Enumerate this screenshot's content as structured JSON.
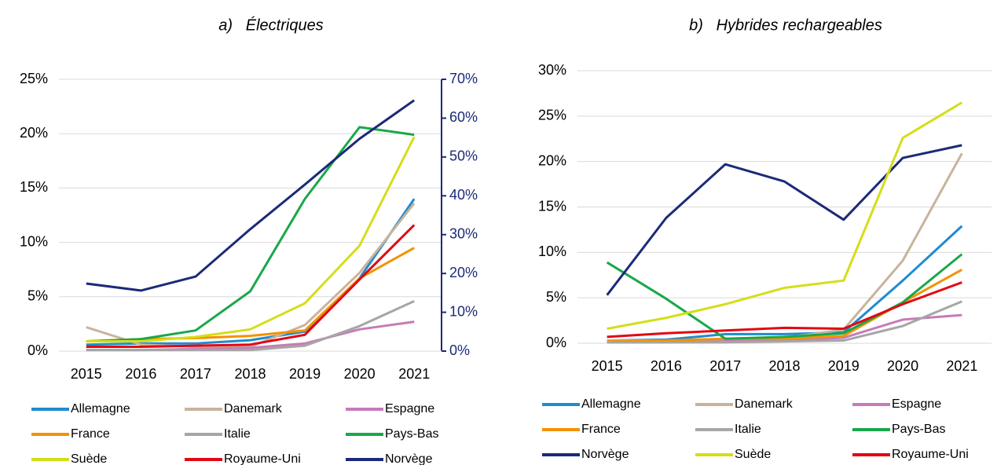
{
  "chart_data": [
    {
      "type": "line",
      "title": "a)   Électriques",
      "categories": [
        "2015",
        "2016",
        "2017",
        "2018",
        "2019",
        "2020",
        "2021"
      ],
      "ylim": [
        0,
        25
      ],
      "yticks": [
        {
          "value": 0,
          "label": "0%"
        },
        {
          "value": 5,
          "label": "5%"
        },
        {
          "value": 10,
          "label": "10%"
        },
        {
          "value": 15,
          "label": "15%"
        },
        {
          "value": 20,
          "label": "20%"
        },
        {
          "value": 25,
          "label": "25%"
        }
      ],
      "y2lim": [
        0,
        70
      ],
      "y2ticks": [
        {
          "value": 0,
          "label": "0%"
        },
        {
          "value": 10,
          "label": "10%"
        },
        {
          "value": 20,
          "label": "20%"
        },
        {
          "value": 30,
          "label": "30%"
        },
        {
          "value": 40,
          "label": "40%"
        },
        {
          "value": 50,
          "label": "50%"
        },
        {
          "value": 60,
          "label": "60%"
        },
        {
          "value": 70,
          "label": "70%"
        }
      ],
      "y2color": "#1b2a78",
      "grid": true,
      "series": [
        {
          "name": "Allemagne",
          "color": "#1f8bd0",
          "values": [
            0.6,
            0.7,
            0.7,
            1.0,
            1.8,
            6.7,
            14.0
          ]
        },
        {
          "name": "Danemark",
          "color": "#c8b49b",
          "values": [
            2.2,
            0.6,
            0.4,
            0.4,
            2.4,
            7.2,
            13.6
          ]
        },
        {
          "name": "Espagne",
          "color": "#c77bb8",
          "values": [
            0.1,
            0.1,
            0.2,
            0.3,
            0.7,
            2.0,
            2.7
          ]
        },
        {
          "name": "France",
          "color": "#f39200",
          "values": [
            0.9,
            1.1,
            1.2,
            1.4,
            1.9,
            6.7,
            9.5
          ]
        },
        {
          "name": "Italie",
          "color": "#a6a6a6",
          "values": [
            0.1,
            0.1,
            0.1,
            0.1,
            0.5,
            2.3,
            4.6
          ]
        },
        {
          "name": "Pays-Bas",
          "color": "#19a84a",
          "values": [
            0.9,
            1.1,
            1.9,
            5.5,
            14.0,
            20.6,
            19.9
          ]
        },
        {
          "name": "Suède",
          "color": "#d4de18",
          "values": [
            0.9,
            0.9,
            1.3,
            2.0,
            4.4,
            9.7,
            19.7
          ]
        },
        {
          "name": "Royaume-Uni",
          "color": "#e30613",
          "values": [
            0.4,
            0.4,
            0.5,
            0.6,
            1.5,
            6.6,
            11.6
          ]
        },
        {
          "name": "Norvège",
          "color": "#1b2a78",
          "axis": "y2",
          "values": [
            17.4,
            15.6,
            19.2,
            31.4,
            42.9,
            54.7,
            64.6
          ]
        }
      ]
    },
    {
      "type": "line",
      "title": "b)   Hybrides rechargeables",
      "categories": [
        "2015",
        "2016",
        "2017",
        "2018",
        "2019",
        "2020",
        "2021"
      ],
      "ylim": [
        0,
        30
      ],
      "yticks": [
        {
          "value": 0,
          "label": "0%"
        },
        {
          "value": 5,
          "label": "5%"
        },
        {
          "value": 10,
          "label": "10%"
        },
        {
          "value": 15,
          "label": "15%"
        },
        {
          "value": 20,
          "label": "20%"
        },
        {
          "value": 25,
          "label": "25%"
        },
        {
          "value": 30,
          "label": "30%"
        }
      ],
      "grid": true,
      "series": [
        {
          "name": "Allemagne",
          "color": "#1f8bd0",
          "values": [
            0.3,
            0.4,
            1.0,
            1.0,
            1.2,
            6.9,
            12.9
          ]
        },
        {
          "name": "Danemark",
          "color": "#c8b49b",
          "values": [
            0.3,
            0.3,
            0.4,
            0.6,
            1.5,
            9.1,
            20.9
          ]
        },
        {
          "name": "Espagne",
          "color": "#c77bb8",
          "values": [
            0.1,
            0.1,
            0.2,
            0.3,
            0.6,
            2.6,
            3.1
          ]
        },
        {
          "name": "France",
          "color": "#f39200",
          "values": [
            0.2,
            0.3,
            0.5,
            0.5,
            0.8,
            4.5,
            8.1
          ]
        },
        {
          "name": "Italie",
          "color": "#a6a6a6",
          "values": [
            0.1,
            0.1,
            0.1,
            0.2,
            0.3,
            1.9,
            4.6
          ]
        },
        {
          "name": "Pays-Bas",
          "color": "#19a84a",
          "values": [
            8.9,
            4.9,
            0.5,
            0.7,
            1.1,
            4.5,
            9.8
          ]
        },
        {
          "name": "Norvège",
          "color": "#1b2a78",
          "values": [
            5.3,
            13.8,
            19.7,
            17.8,
            13.6,
            20.4,
            21.8
          ]
        },
        {
          "name": "Suède",
          "color": "#d4de18",
          "values": [
            1.6,
            2.8,
            4.3,
            6.1,
            6.9,
            22.6,
            26.5
          ]
        },
        {
          "name": "Royaume-Uni",
          "color": "#e30613",
          "values": [
            0.7,
            1.1,
            1.4,
            1.7,
            1.6,
            4.3,
            6.7
          ]
        }
      ]
    }
  ]
}
